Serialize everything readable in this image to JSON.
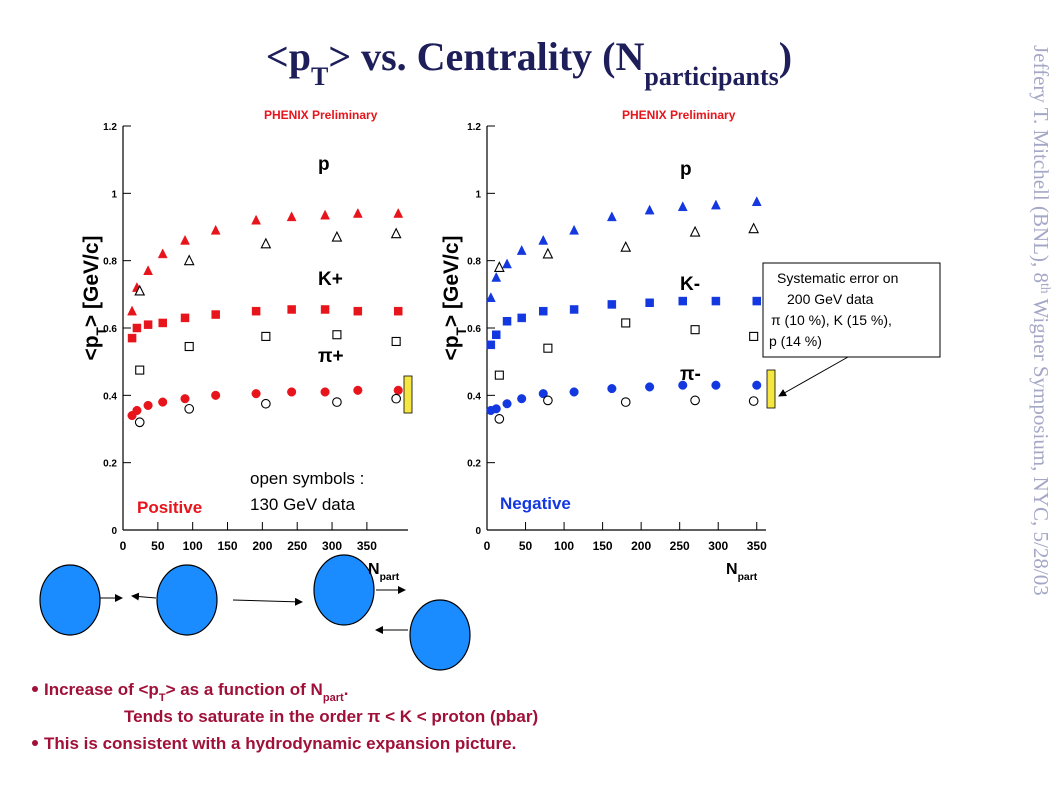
{
  "title": [
    "<p",
    "T",
    "> vs. Centrality (N",
    "participants",
    ")"
  ],
  "side_text": [
    "Jeffery T. Mitchell (BNL), 8",
    "th",
    " Wigner Symposium, NYC, 5/28/03"
  ],
  "open_symbols_note": [
    "open symbols :",
    "130 GeV data"
  ],
  "systematic_note": [
    "Systematic error on",
    "200 GeV data",
    "π (10 %), K (15 %),",
    "p (14 %)"
  ],
  "bullets": [
    [
      "Increase of <p",
      "T",
      "> as a function of N",
      "part",
      "."
    ],
    [
      "Tends to saturate in the order π < K < proton (pbar)"
    ],
    [
      "This is consistent with a hydrodynamic expansion picture."
    ]
  ],
  "chart_data": [
    {
      "type": "scatter",
      "annotation": "PHENIX Preliminary",
      "label": "Positive",
      "label_color": "#e8141b",
      "y_label": [
        "<p",
        "T",
        "> [GeV/c]"
      ],
      "x_label": [
        "N",
        "part"
      ],
      "xlim": [
        0,
        409
      ],
      "xticks": [
        0,
        50,
        100,
        150,
        200,
        250,
        300,
        350
      ],
      "ylim": [
        0,
        1.2
      ],
      "yticks": [
        0,
        0.2,
        0.4,
        0.6,
        0.8,
        1,
        1.2
      ],
      "series": [
        {
          "name": "p",
          "color": "#e8141b",
          "marker": "triangle",
          "filled": true,
          "x": [
            13,
            20,
            36,
            57,
            89,
            133,
            191,
            242,
            290,
            337,
            395
          ],
          "values": [
            0.65,
            0.72,
            0.77,
            0.82,
            0.86,
            0.89,
            0.92,
            0.93,
            0.935,
            0.94,
            0.94
          ]
        },
        {
          "name": "K+",
          "color": "#e8141b",
          "marker": "square",
          "filled": true,
          "x": [
            13,
            20,
            36,
            57,
            89,
            133,
            191,
            242,
            290,
            337,
            395
          ],
          "values": [
            0.57,
            0.6,
            0.61,
            0.615,
            0.63,
            0.64,
            0.65,
            0.655,
            0.655,
            0.65,
            0.65
          ]
        },
        {
          "name": "π+",
          "color": "#e8141b",
          "marker": "circle",
          "filled": true,
          "x": [
            13,
            20,
            36,
            57,
            89,
            133,
            191,
            242,
            290,
            337,
            395
          ],
          "values": [
            0.34,
            0.355,
            0.37,
            0.38,
            0.39,
            0.4,
            0.405,
            0.41,
            0.41,
            0.415,
            0.415
          ]
        },
        {
          "color": "#000000",
          "marker": "triangle",
          "filled": false,
          "x": [
            24,
            95,
            205,
            307,
            392
          ],
          "values": [
            0.71,
            0.8,
            0.85,
            0.87,
            0.88
          ]
        },
        {
          "color": "#000000",
          "marker": "square",
          "filled": false,
          "x": [
            24,
            95,
            205,
            307,
            392
          ],
          "values": [
            0.475,
            0.545,
            0.575,
            0.58,
            0.56
          ]
        },
        {
          "color": "#000000",
          "marker": "circle",
          "filled": false,
          "x": [
            24,
            95,
            205,
            307,
            392
          ],
          "values": [
            0.32,
            0.36,
            0.375,
            0.38,
            0.39
          ]
        }
      ]
    },
    {
      "type": "scatter",
      "annotation": "PHENIX Preliminary",
      "label": "Negative",
      "label_color": "#1438e0",
      "y_label": [
        "<p",
        "T",
        "> [GeV/c]"
      ],
      "x_label": [
        "N",
        "part"
      ],
      "xlim": [
        0,
        362
      ],
      "xticks": [
        0,
        50,
        100,
        150,
        200,
        250,
        300,
        350
      ],
      "ylim": [
        0,
        1.2
      ],
      "yticks": [
        0,
        0.2,
        0.4,
        0.6,
        0.8,
        1,
        1.2
      ],
      "series": [
        {
          "name": "p",
          "color": "#1438e0",
          "marker": "triangle",
          "filled": true,
          "x": [
            5,
            12,
            26,
            45,
            73,
            113,
            162,
            211,
            254,
            297,
            350
          ],
          "values": [
            0.69,
            0.75,
            0.79,
            0.83,
            0.86,
            0.89,
            0.93,
            0.95,
            0.96,
            0.965,
            0.975
          ]
        },
        {
          "name": "K-",
          "color": "#1438e0",
          "marker": "square",
          "filled": true,
          "x": [
            5,
            12,
            26,
            45,
            73,
            113,
            162,
            211,
            254,
            297,
            350
          ],
          "values": [
            0.55,
            0.58,
            0.62,
            0.63,
            0.65,
            0.655,
            0.67,
            0.675,
            0.68,
            0.68,
            0.68
          ]
        },
        {
          "name": "π-",
          "color": "#1438e0",
          "marker": "circle",
          "filled": true,
          "x": [
            5,
            12,
            26,
            45,
            73,
            113,
            162,
            211,
            254,
            297,
            350
          ],
          "values": [
            0.355,
            0.36,
            0.375,
            0.39,
            0.405,
            0.41,
            0.42,
            0.425,
            0.43,
            0.43,
            0.43
          ]
        },
        {
          "color": "#000000",
          "marker": "triangle",
          "filled": false,
          "x": [
            16,
            79,
            180,
            270,
            346
          ],
          "values": [
            0.78,
            0.82,
            0.84,
            0.885,
            0.895
          ]
        },
        {
          "color": "#000000",
          "marker": "square",
          "filled": false,
          "x": [
            16,
            79,
            180,
            270,
            346
          ],
          "values": [
            0.46,
            0.54,
            0.615,
            0.595,
            0.575
          ]
        },
        {
          "color": "#000000",
          "marker": "circle",
          "filled": false,
          "x": [
            16,
            79,
            180,
            270,
            346
          ],
          "values": [
            0.33,
            0.385,
            0.38,
            0.385,
            0.383
          ]
        }
      ]
    }
  ]
}
